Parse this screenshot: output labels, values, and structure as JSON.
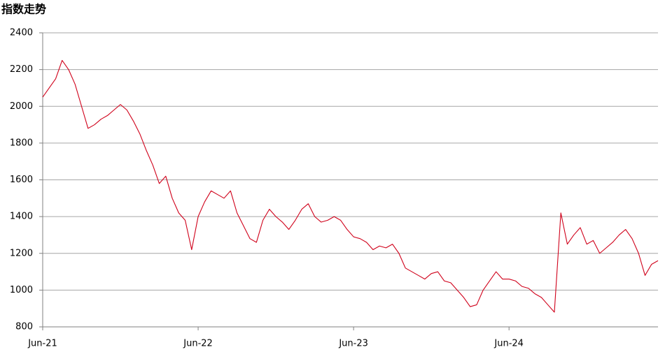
{
  "chart_data": {
    "type": "line",
    "title": "指数走势",
    "categories": [
      "Jun-21",
      null,
      null,
      null,
      null,
      null,
      null,
      null,
      null,
      null,
      null,
      null,
      null,
      null,
      null,
      null,
      null,
      null,
      null,
      null,
      null,
      null,
      null,
      null,
      "Jun-22",
      null,
      null,
      null,
      null,
      null,
      null,
      null,
      null,
      null,
      null,
      null,
      null,
      null,
      null,
      null,
      null,
      null,
      null,
      null,
      null,
      null,
      null,
      null,
      "Jun-23",
      null,
      null,
      null,
      null,
      null,
      null,
      null,
      null,
      null,
      null,
      null,
      null,
      null,
      null,
      null,
      null,
      null,
      null,
      null,
      null,
      null,
      null,
      null,
      "Jun-24",
      null,
      null,
      null,
      null,
      null,
      null,
      null,
      null,
      null,
      null,
      null,
      null,
      null,
      null,
      null,
      null,
      null,
      null,
      null,
      null,
      null,
      null,
      null
    ],
    "series": [
      {
        "color": "#d0021b",
        "values": [
          2050,
          2100,
          2150,
          2250,
          2200,
          2120,
          2000,
          1880,
          1900,
          1930,
          1950,
          1980,
          2010,
          1980,
          1920,
          1850,
          1760,
          1680,
          1580,
          1620,
          1500,
          1420,
          1380,
          1220,
          1400,
          1480,
          1540,
          1520,
          1500,
          1540,
          1420,
          1350,
          1280,
          1260,
          1380,
          1440,
          1400,
          1370,
          1330,
          1380,
          1440,
          1470,
          1400,
          1370,
          1380,
          1400,
          1380,
          1330,
          1290,
          1280,
          1260,
          1220,
          1240,
          1230,
          1250,
          1200,
          1120,
          1100,
          1080,
          1060,
          1090,
          1100,
          1050,
          1040,
          1000,
          960,
          910,
          920,
          1000,
          1050,
          1100,
          1060,
          1060,
          1050,
          1020,
          1010,
          980,
          960,
          920,
          880,
          1420,
          1250,
          1300,
          1340,
          1250,
          1270,
          1200,
          1230,
          1260,
          1300,
          1330,
          1280,
          1200,
          1080,
          1140,
          1160
        ]
      }
    ],
    "ylim": [
      800,
      2400
    ],
    "yticks": [
      800,
      1000,
      1200,
      1400,
      1600,
      1800,
      2000,
      2200,
      2400
    ],
    "grid": true
  }
}
